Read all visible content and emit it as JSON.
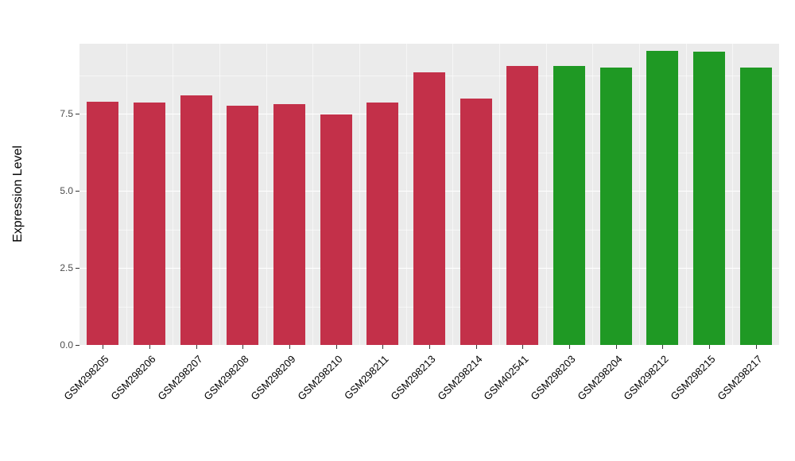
{
  "chart_data": {
    "type": "bar",
    "title": "",
    "xlabel": "",
    "ylabel": "Expression Level",
    "categories": [
      "GSM298205",
      "GSM298206",
      "GSM298207",
      "GSM298208",
      "GSM298209",
      "GSM298210",
      "GSM298211",
      "GSM298213",
      "GSM298214",
      "GSM402541",
      "GSM298203",
      "GSM298204",
      "GSM298212",
      "GSM298215",
      "GSM298217"
    ],
    "values": [
      7.9,
      7.85,
      8.1,
      7.75,
      7.8,
      7.48,
      7.85,
      8.85,
      8.0,
      9.05,
      9.05,
      9.0,
      9.55,
      9.5,
      9.0
    ],
    "bar_colors": [
      "#C33049",
      "#C33049",
      "#C33049",
      "#C33049",
      "#C33049",
      "#C33049",
      "#C33049",
      "#C33049",
      "#C33049",
      "#C33049",
      "#1F9924",
      "#1F9924",
      "#1F9924",
      "#1F9924",
      "#1F9924"
    ],
    "group_colors": {
      "red": "#C33049",
      "green": "#1F9924"
    },
    "yticks": [
      0.0,
      2.5,
      5.0,
      7.5
    ],
    "ytick_labels": [
      "0.0",
      "2.5",
      "5.0",
      "7.5"
    ],
    "yticks_minor": [
      1.25,
      3.75,
      6.25,
      8.75
    ],
    "ylim": [
      0,
      9.77
    ],
    "panel_bg": "#EBEBEB",
    "grid_color": "#FFFFFF",
    "legend": "none",
    "grid": "on"
  }
}
